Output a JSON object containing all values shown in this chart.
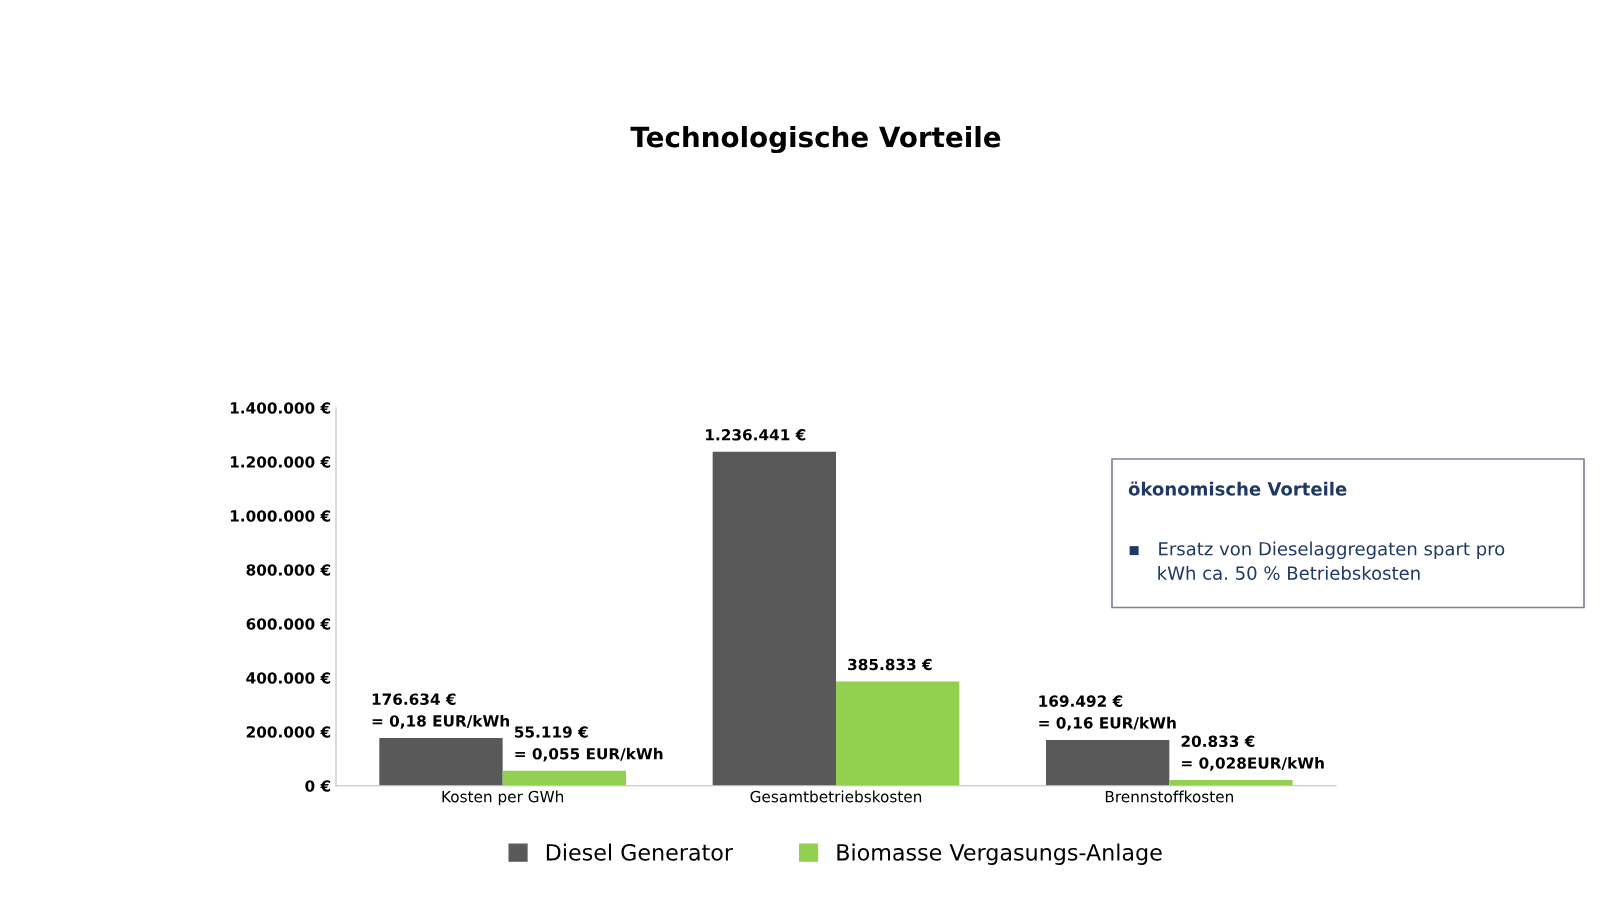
{
  "chart_data": {
    "type": "bar",
    "title": "Technologische Vorteile",
    "categories": [
      "Kosten per GWh",
      "Gesamtbetriebskosten",
      "Brennstoffkosten"
    ],
    "series": [
      {
        "name": "Diesel Generator",
        "color": "#595959",
        "values": [
          176634,
          1236441,
          169492
        ],
        "value_labels": [
          "176.634 €\n= 0,18 EUR/kWh",
          "1.236.441 €",
          "169.492 €\n= 0,16 EUR/kWh"
        ]
      },
      {
        "name": "Biomasse Vergasungs-Anlage",
        "color": "#92d050",
        "values": [
          55119,
          385833,
          20833
        ],
        "value_labels": [
          "55.119 €\n= 0,055 EUR/kWh",
          "385.833 €",
          "20.833 €\n= 0,028EUR/kWh"
        ]
      }
    ],
    "ylim": [
      0,
      1400000
    ],
    "yticks": [
      {
        "value": 0,
        "label": "0 €"
      },
      {
        "value": 200000,
        "label": "200.000 €"
      },
      {
        "value": 400000,
        "label": "400.000 €"
      },
      {
        "value": 600000,
        "label": "600.000 €"
      },
      {
        "value": 800000,
        "label": "800.000 €"
      },
      {
        "value": 1000000,
        "label": "1.000.000 €"
      },
      {
        "value": 1200000,
        "label": "1.200.000 €"
      },
      {
        "value": 1400000,
        "label": "1.400.000 €"
      }
    ],
    "grid": false,
    "legend": "bottom",
    "annotations": [
      "ökonomische Vorteile",
      "▪   Ersatz von Dieselaggregaten spart pro\n     kWh ca. 50 % Betriebskosten"
    ]
  }
}
